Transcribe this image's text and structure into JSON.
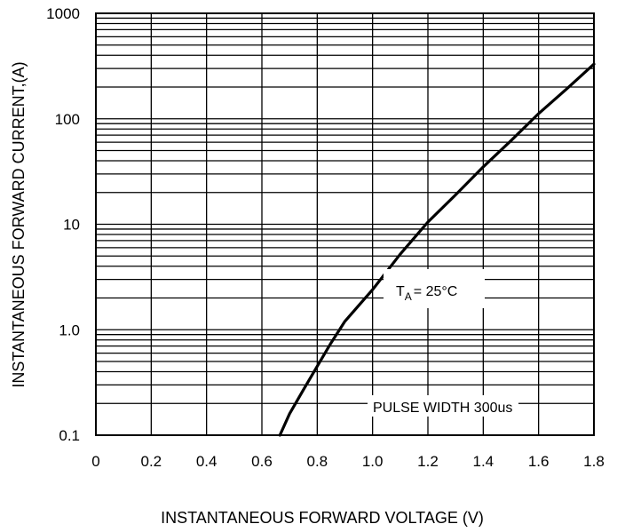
{
  "chart_data": {
    "type": "line",
    "xlabel": "INSTANTANEOUS FORWARD VOLTAGE  (V)",
    "ylabel": "INSTANTANEOUS FORWARD CURRENT,(A)",
    "xlim": [
      0,
      1.8
    ],
    "ylim": [
      0.1,
      1000
    ],
    "y_scale": "log",
    "grid": true,
    "x_ticks": [
      "0",
      "0.2",
      "0.4",
      "0.6",
      "0.8",
      "1.0",
      "1.2",
      "1.4",
      "1.6",
      "1.8"
    ],
    "y_ticks": [
      "0.1",
      "1.0",
      "10",
      "100",
      "1000"
    ],
    "annotations": {
      "temperature_main": "T",
      "temperature_sub": "A",
      "temperature_rest": "= 25°C",
      "pulse": "PULSE WIDTH 300us"
    },
    "series": [
      {
        "x": [
          0.665,
          0.7,
          0.75,
          0.8,
          0.85,
          0.9,
          1.0,
          1.1,
          1.2,
          1.3,
          1.4,
          1.5,
          1.6,
          1.7,
          1.8
        ],
        "y": [
          0.1,
          0.16,
          0.27,
          0.45,
          0.75,
          1.2,
          2.4,
          5.2,
          10.5,
          19,
          35,
          62,
          112,
          190,
          330
        ]
      }
    ]
  }
}
